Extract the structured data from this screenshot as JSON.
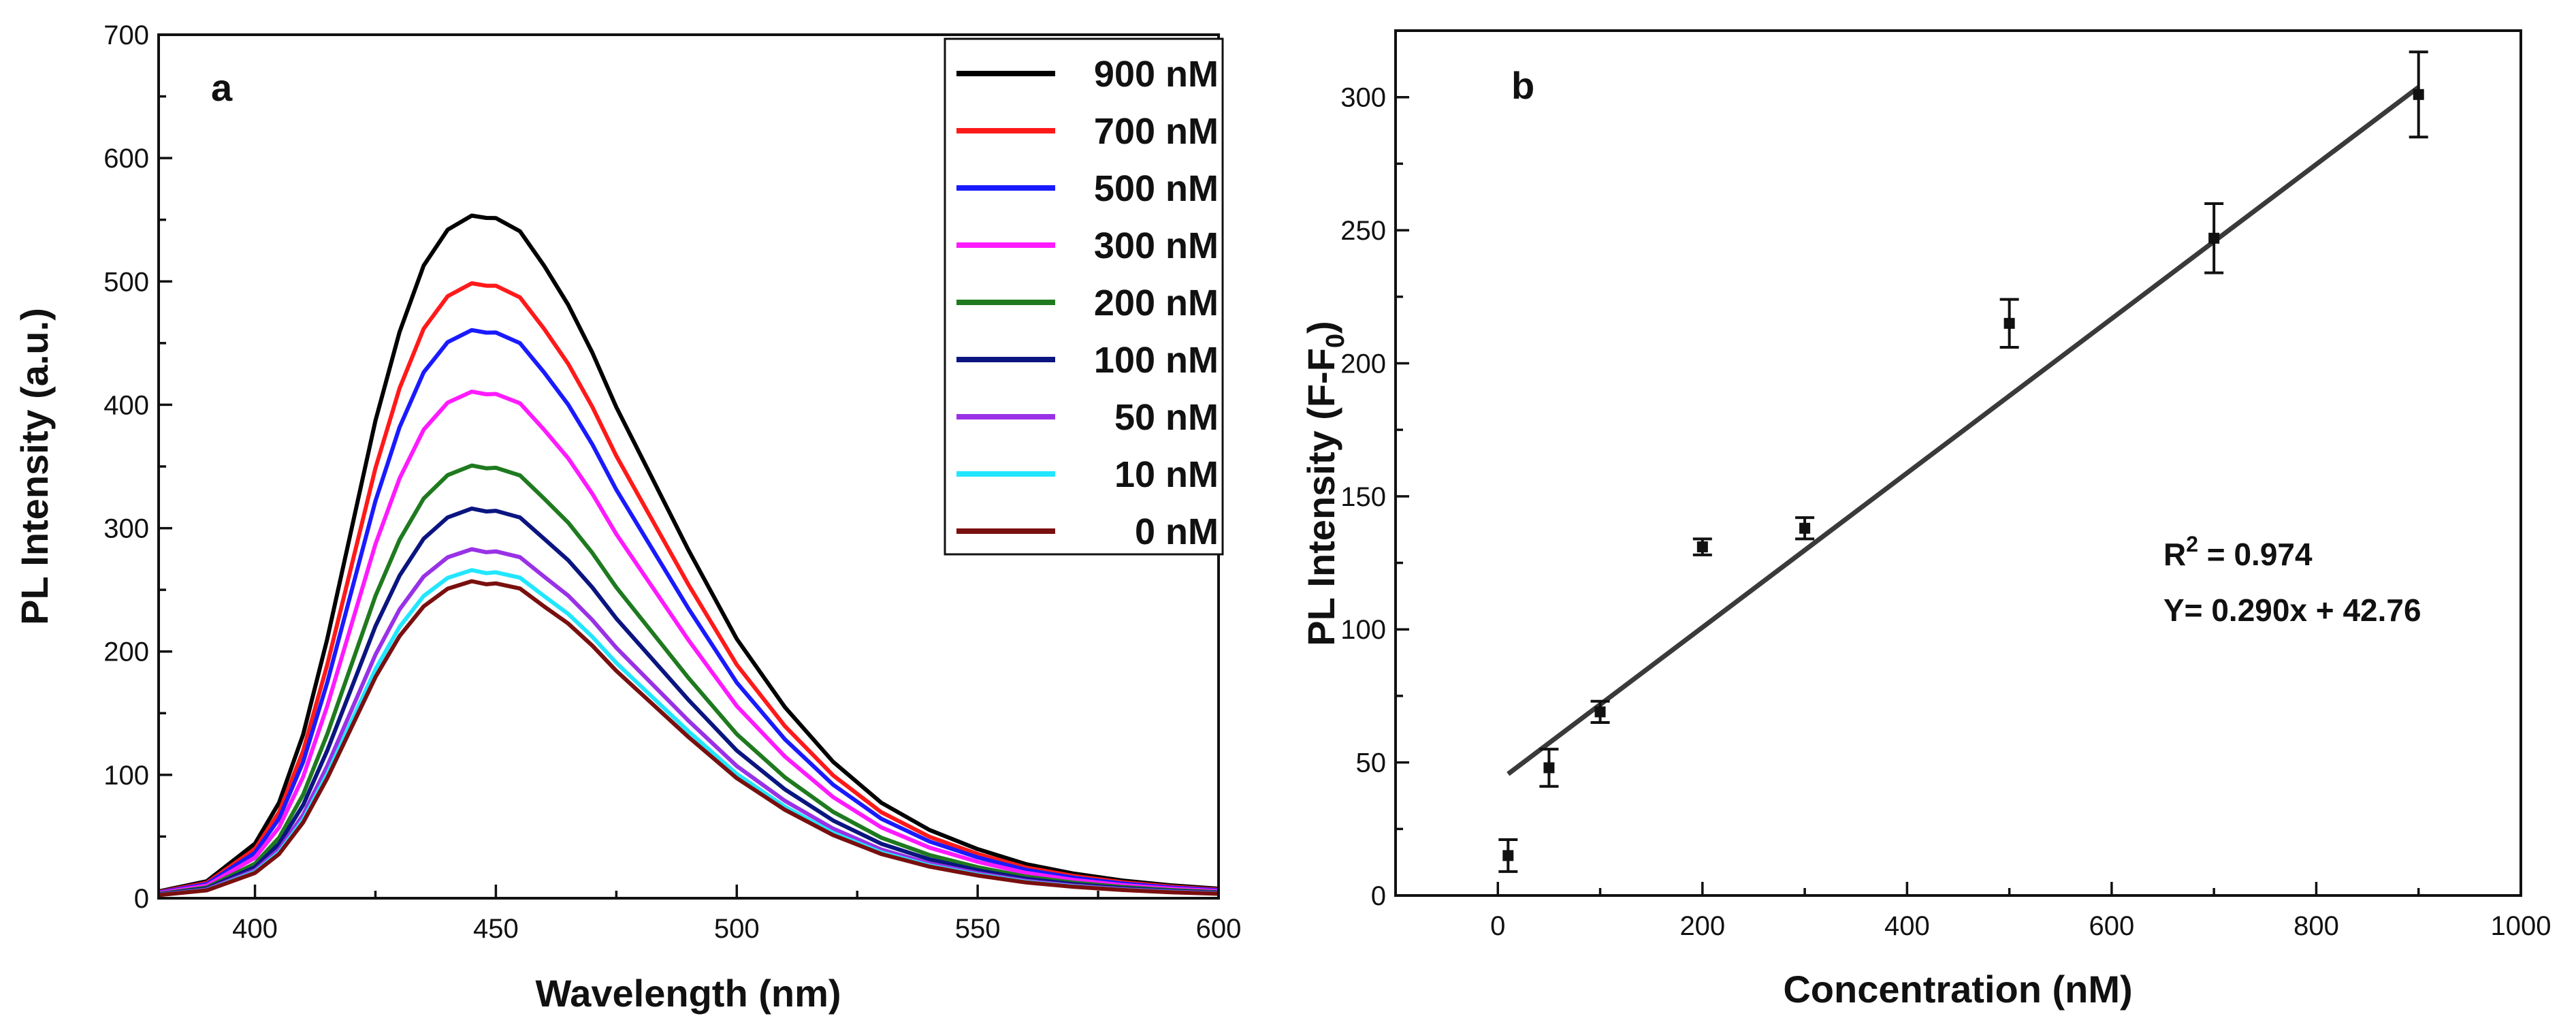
{
  "chart_data": [
    {
      "type": "line",
      "panel_label": "a",
      "xlabel": "Wavelength (nm)",
      "ylabel": "PL Intensity (a.u.)",
      "xlim": [
        380,
        600
      ],
      "ylim": [
        0,
        700
      ],
      "xticks": [
        400,
        450,
        500,
        550,
        600
      ],
      "yticks": [
        0,
        100,
        200,
        300,
        400,
        500,
        600,
        700
      ],
      "legend_position": "top-right",
      "series": [
        {
          "name": "900 nM",
          "color": "#000000",
          "peak": 553
        },
        {
          "name": "700 nM",
          "color": "#ff1a1a",
          "peak": 498
        },
        {
          "name": "500 nM",
          "color": "#1a1aff",
          "peak": 460
        },
        {
          "name": "300 nM",
          "color": "#ff1aff",
          "peak": 410
        },
        {
          "name": "200 nM",
          "color": "#1f7a1f",
          "peak": 350
        },
        {
          "name": "100 nM",
          "color": "#0b1580",
          "peak": 315
        },
        {
          "name": "50 nM",
          "color": "#9932e6",
          "peak": 282
        },
        {
          "name": "10 nM",
          "color": "#22e6ff",
          "peak": 265
        },
        {
          "name": "0 nM",
          "color": "#7a0f0f",
          "peak": 256
        }
      ],
      "peak_x": 448,
      "x": [
        380,
        390,
        400,
        405,
        410,
        415,
        420,
        425,
        430,
        435,
        440,
        445,
        448,
        450,
        455,
        460,
        465,
        470,
        475,
        480,
        490,
        500,
        510,
        520,
        530,
        540,
        550,
        560,
        570,
        580,
        590,
        600
      ],
      "profile": [
        0.01,
        0.025,
        0.08,
        0.14,
        0.24,
        0.38,
        0.54,
        0.7,
        0.83,
        0.93,
        0.98,
        0.998,
        1.0,
        0.997,
        0.975,
        0.93,
        0.87,
        0.8,
        0.72,
        0.65,
        0.51,
        0.38,
        0.28,
        0.2,
        0.14,
        0.1,
        0.072,
        0.05,
        0.036,
        0.026,
        0.019,
        0.014
      ]
    },
    {
      "type": "scatter",
      "panel_label": "b",
      "xlabel": "Concentration (nM)",
      "ylabel_main": "PL Intensity (F-F",
      "ylabel_sub": "0",
      "ylabel_close": ")",
      "xlim": [
        -100,
        1000
      ],
      "ylim": [
        0,
        325
      ],
      "xticks": [
        0,
        200,
        400,
        600,
        800,
        1000
      ],
      "yticks": [
        0,
        50,
        100,
        150,
        200,
        250,
        300
      ],
      "points": [
        {
          "x": 10,
          "y": 15,
          "err": 6
        },
        {
          "x": 50,
          "y": 48,
          "err": 7
        },
        {
          "x": 100,
          "y": 69,
          "err": 4
        },
        {
          "x": 200,
          "y": 131,
          "err": 3
        },
        {
          "x": 300,
          "y": 138,
          "err": 4
        },
        {
          "x": 500,
          "y": 215,
          "err": 9
        },
        {
          "x": 700,
          "y": 247,
          "err": 13
        },
        {
          "x": 900,
          "y": 301,
          "err": 16
        }
      ],
      "fit": {
        "slope": 0.29,
        "intercept": 42.76,
        "x_range": [
          10,
          900
        ],
        "color": "#3a3a3a"
      },
      "annotation_r2_prefix": "R",
      "annotation_r2_sup": "2",
      "annotation_r2_value": " = 0.974",
      "annotation_eq": "Y= 0.290x + 42.76"
    }
  ]
}
